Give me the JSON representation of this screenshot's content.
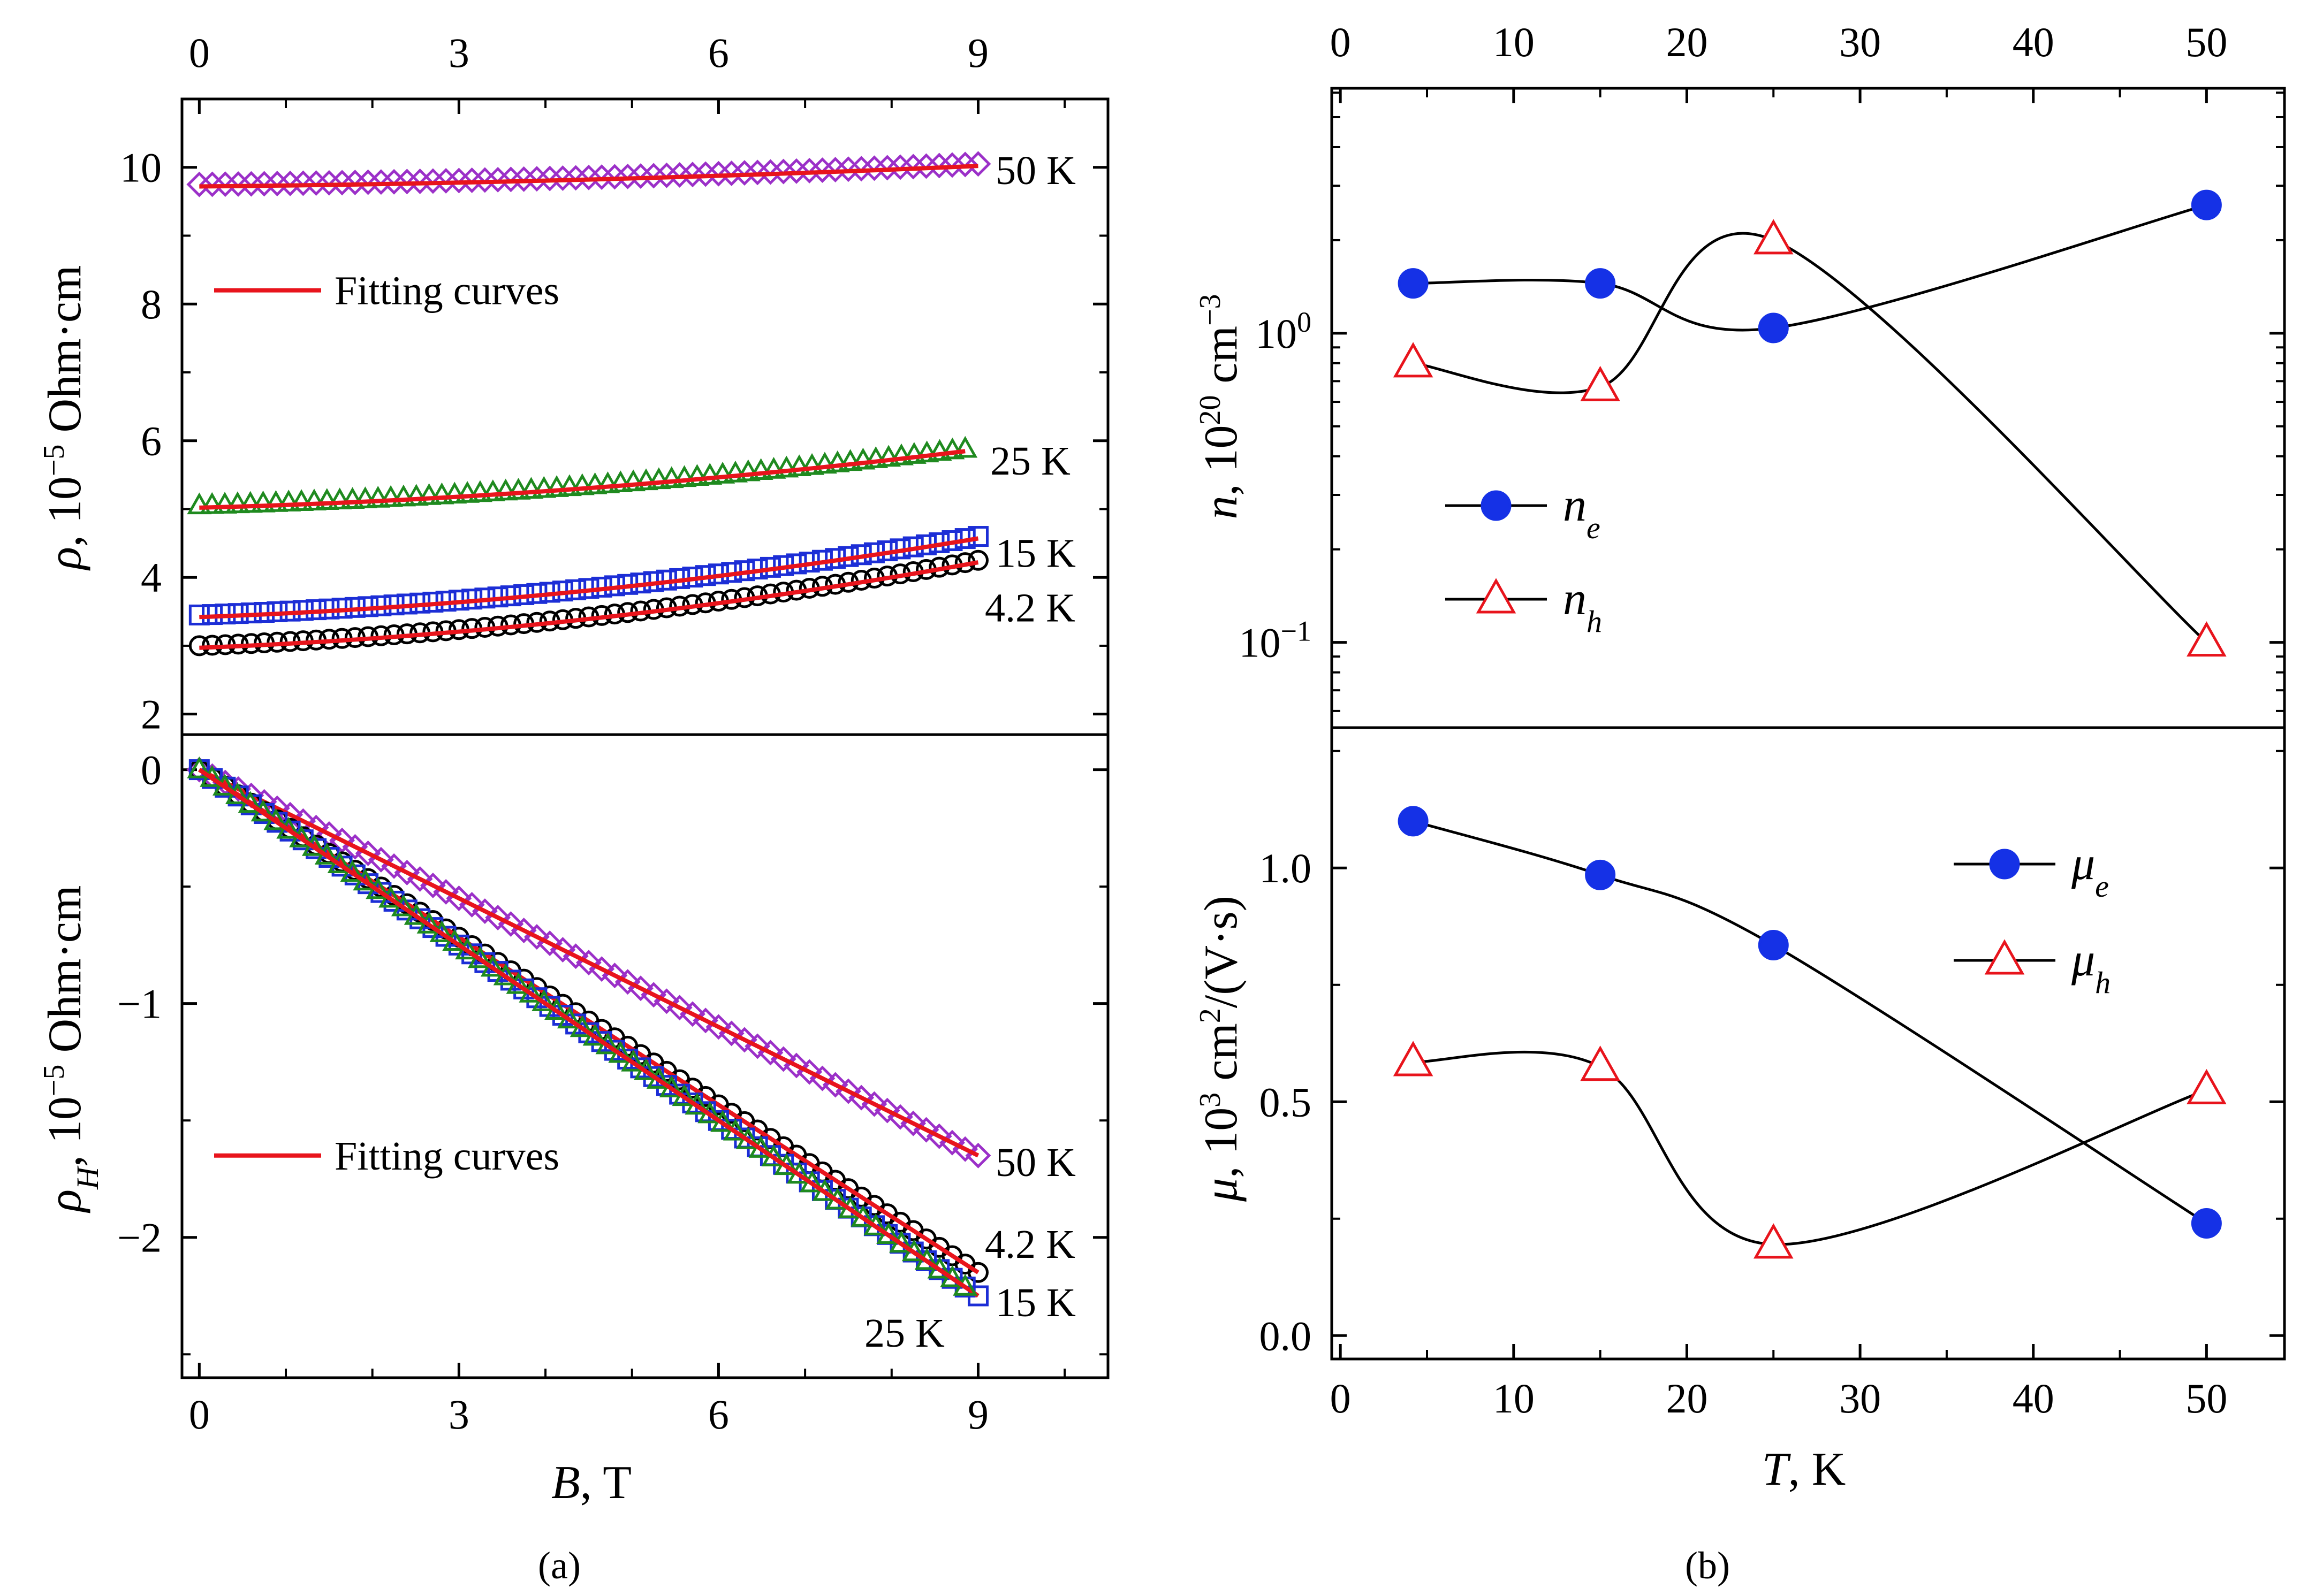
{
  "captions": {
    "a": "(a)",
    "b": "(b)"
  },
  "colors": {
    "fit": "#e8141c",
    "k50": "#9b30c8",
    "k25": "#1f8a1f",
    "k15": "#1c2ed6",
    "k4": "#000000",
    "electron": "#1531e6",
    "hole": "#e8141c"
  },
  "chart_data": [
    {
      "id": "a_top",
      "type": "scatter",
      "title": "",
      "xlabel": "B, T",
      "ylabel": {
        "symbol": "ρ",
        "text": ", 10",
        "exp": "−5",
        "unit": " Ohm·cm"
      },
      "xlim": [
        -0.2,
        10.5
      ],
      "ylim": [
        1.7,
        11.0
      ],
      "xticks": [
        "0",
        "3",
        "6",
        "9"
      ],
      "yticks": [
        "2",
        "4",
        "6",
        "8",
        "10"
      ],
      "legend": {
        "label": "Fitting curves",
        "placement": "middle-left"
      },
      "series": [
        {
          "name": "50 K",
          "marker": "diamond",
          "color_key": "k50",
          "y0": 9.75,
          "y9": 10.05
        },
        {
          "name": "25 K",
          "marker": "triangle-up",
          "color_key": "k25",
          "y0": 5.05,
          "y9": 5.9
        },
        {
          "name": "15 K",
          "marker": "square",
          "color_key": "k15",
          "y0": 3.45,
          "y9": 4.6
        },
        {
          "name": "4.2 K",
          "marker": "circle",
          "color_key": "k4",
          "y0": 3.0,
          "y9": 4.25
        }
      ]
    },
    {
      "id": "a_bottom",
      "type": "scatter",
      "title": "",
      "xlabel": "B, T",
      "ylabel": {
        "symbol": "ρ",
        "sub": "H",
        "text": ", 10",
        "exp": "−5",
        "unit": " Ohm·cm"
      },
      "xlim": [
        -0.2,
        10.5
      ],
      "ylim": [
        -2.6,
        0.15
      ],
      "xticks": [
        "0",
        "3",
        "6",
        "9"
      ],
      "yticks": [
        "0",
        "−1",
        "−2"
      ],
      "legend": {
        "label": "Fitting curves",
        "placement": "bottom-left"
      },
      "series": [
        {
          "name": "50 K",
          "marker": "diamond",
          "color_key": "k50",
          "y0": 0,
          "y9": -1.65
        },
        {
          "name": "4.2 K",
          "marker": "circle",
          "color_key": "k4",
          "y0": 0,
          "y9": -2.15
        },
        {
          "name": "15 K",
          "marker": "square",
          "color_key": "k15",
          "y0": 0,
          "y9": -2.25
        },
        {
          "name": "25 K",
          "marker": "triangle-up",
          "color_key": "k25",
          "y0": 0,
          "y9": -2.25
        }
      ]
    },
    {
      "id": "b_top",
      "type": "line",
      "title": "",
      "xlabel": "T, K",
      "ylabel": {
        "symbol": "n",
        "text": ", 10",
        "exp": "20",
        "unit": " cm",
        "exp2": "−3"
      },
      "xlim": [
        -0.5,
        54.5
      ],
      "yscale": "log",
      "ylim": [
        0.053,
        6.2
      ],
      "xticks": [
        "0",
        "10",
        "20",
        "30",
        "40",
        "50"
      ],
      "yticks": [
        {
          "value": 1,
          "base": "10",
          "exp": "0"
        },
        {
          "value": 0.1,
          "base": "10",
          "exp": "−1"
        }
      ],
      "series": [
        {
          "name": "n",
          "sub": "e",
          "marker": "circle",
          "color_key": "electron",
          "x": [
            4.2,
            15,
            25,
            50
          ],
          "y": [
            1.45,
            1.45,
            1.04,
            2.6
          ]
        },
        {
          "name": "n",
          "sub": "h",
          "marker": "triangle-up",
          "color_key": "hole",
          "x": [
            4.2,
            15,
            25,
            50
          ],
          "y": [
            0.8,
            0.67,
            2.0,
            0.1
          ]
        }
      ]
    },
    {
      "id": "b_bottom",
      "type": "line",
      "title": "",
      "xlabel": "T, K",
      "ylabel": {
        "symbol": "μ",
        "text": ", 10",
        "exp": "3",
        "unit": " cm",
        "exp2": "2",
        "unit2": "/(V·s)"
      },
      "xlim": [
        -0.5,
        54.5
      ],
      "ylim": [
        -0.05,
        1.3
      ],
      "xticks": [
        "0",
        "10",
        "20",
        "30",
        "40",
        "50"
      ],
      "yticks": [
        "0.0",
        "0.5",
        "1.0"
      ],
      "series": [
        {
          "name": "μ",
          "sub": "e",
          "marker": "circle",
          "color_key": "electron",
          "x": [
            4.2,
            15,
            25,
            50
          ],
          "y": [
            1.1,
            0.985,
            0.835,
            0.24
          ]
        },
        {
          "name": "μ",
          "sub": "h",
          "marker": "triangle-up",
          "color_key": "hole",
          "x": [
            4.2,
            15,
            25,
            50
          ],
          "y": [
            0.585,
            0.575,
            0.195,
            0.525
          ]
        }
      ]
    }
  ]
}
